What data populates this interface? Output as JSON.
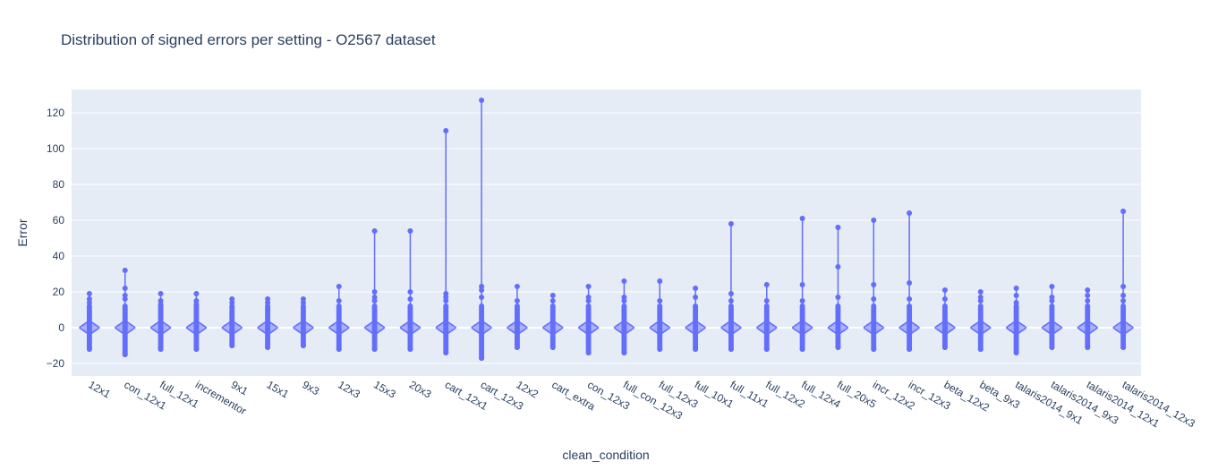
{
  "chart_data": {
    "type": "violin",
    "title": "Distribution of signed errors per setting - O2567 dataset",
    "xlabel": "clean_condition",
    "ylabel": "Error",
    "ylim": [
      -27,
      133
    ],
    "yticks": [
      -20,
      0,
      20,
      40,
      60,
      80,
      100,
      120
    ],
    "grid": true,
    "legend": "none",
    "color": "#636efa",
    "plot_bg": "#e5ecf6",
    "categories": [
      "12x1",
      "con_12x1",
      "full_12x1",
      "incrementor",
      "9x1",
      "15x1",
      "9x3",
      "12x3",
      "15x3",
      "20x3",
      "cart_12x1",
      "cart_12x3",
      "12x2",
      "cart_extra",
      "con_12x3",
      "full_con_12x3",
      "full_12x3",
      "full_10x1",
      "full_11x1",
      "full_12x2",
      "full_12x4",
      "full_20x5",
      "incr_12x2",
      "incr_12x3",
      "beta_12x2",
      "beta_9x3",
      "talaris2014_9x1",
      "talaris2014_9x3",
      "talaris2014_12x1",
      "talaris2014_12x3"
    ],
    "max": [
      19,
      32,
      19,
      19,
      16,
      16,
      16,
      23,
      54,
      54,
      110,
      127,
      23,
      18,
      23,
      26,
      26,
      22,
      58,
      24,
      61,
      56,
      60,
      64,
      21,
      20,
      22,
      23,
      21,
      65
    ],
    "min": [
      -12,
      -15,
      -12,
      -12,
      -10,
      -11,
      -10,
      -12,
      -12,
      -12,
      -14,
      -17,
      -11,
      -11,
      -14,
      -14,
      -12,
      -12,
      -12,
      -12,
      -12,
      -11,
      -12,
      -12,
      -11,
      -12,
      -14,
      -11,
      -11,
      -11
    ],
    "outliers": [
      [
        19,
        16,
        14
      ],
      [
        32,
        22,
        18,
        16
      ],
      [
        19,
        15,
        13
      ],
      [
        19,
        15,
        13
      ],
      [
        16,
        14
      ],
      [
        16,
        14
      ],
      [
        16,
        14
      ],
      [
        23,
        15
      ],
      [
        54,
        20,
        17,
        15
      ],
      [
        54,
        20,
        16
      ],
      [
        110,
        19,
        17,
        15
      ],
      [
        127,
        23,
        21,
        17
      ],
      [
        23,
        15
      ],
      [
        18,
        15
      ],
      [
        23,
        17,
        15
      ],
      [
        26,
        17,
        15
      ],
      [
        26,
        15
      ],
      [
        22,
        17
      ],
      [
        58,
        19,
        15
      ],
      [
        24,
        15
      ],
      [
        61,
        24,
        15
      ],
      [
        56,
        34,
        17
      ],
      [
        60,
        24,
        16
      ],
      [
        64,
        25,
        16
      ],
      [
        21,
        16
      ],
      [
        20,
        17,
        15
      ],
      [
        22,
        18,
        14
      ],
      [
        23,
        17,
        15
      ],
      [
        21,
        18,
        15
      ],
      [
        65,
        23,
        18,
        15
      ]
    ]
  }
}
